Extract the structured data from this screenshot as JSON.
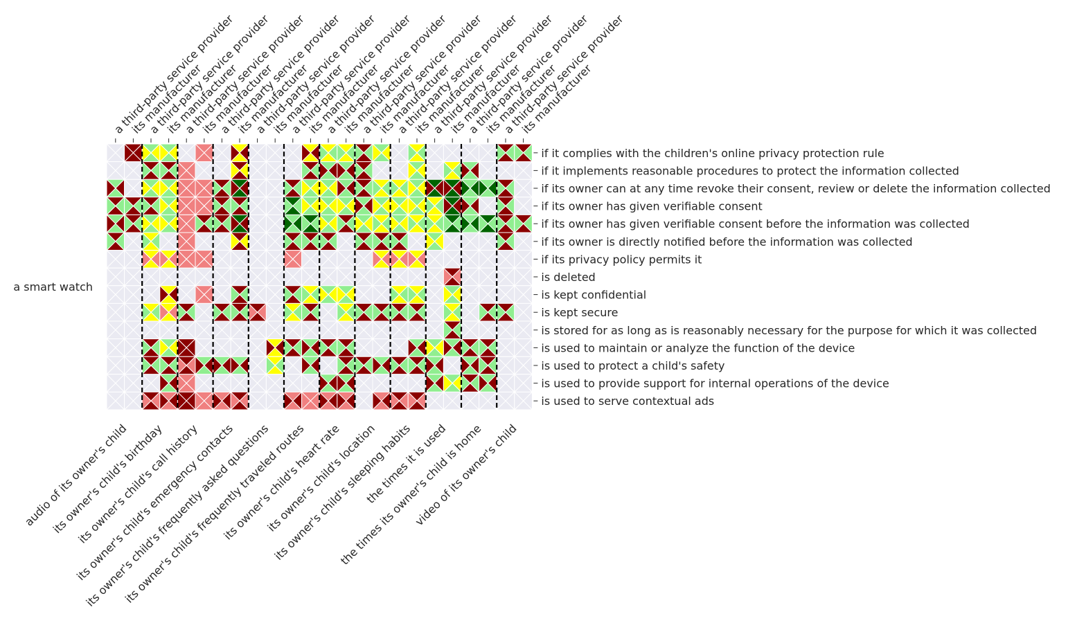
{
  "colors": {
    "background": "#eaeaf2",
    "grid": "#ffffff",
    "dark_red": "#8b0000",
    "light_red": "#f08080",
    "yellow": "#ffff00",
    "light_green": "#90ee90",
    "dark_green": "#006400",
    "separator": "#000000"
  },
  "chart_data": {
    "type": "heatmap",
    "description_cells": "Each cell is split into four triangles (top, right, bottom, left); value is color code per triangle. Codes: 0=none,1=dark_red,2=light_red,3=yellow,4=light_green,5=dark_green",
    "y_group_label": "a smart watch",
    "row_labels": [
      "if it complies with the children's online privacy protection rule",
      "if it implements reasonable procedures to protect the information collected",
      "if its owner can at any time revoke their consent, review or delete the information collected",
      "if its owner has given verifiable consent",
      "if its owner has given verifiable consent before the information was collected",
      "if its owner is directly notified before the information was collected",
      "if its privacy policy permits it",
      "is deleted",
      "is kept confidential",
      "is kept secure",
      "is stored for as long as is reasonably necessary for the purpose for which it was collected",
      "is used to maintain or analyze the function of the device",
      "is used to protect a child's safety",
      "is used to provide support for internal operations of the device",
      "is used to serve contextual ads"
    ],
    "bottom_labels": [
      "audio of its owner's child",
      "its owner's child's birthday",
      "its owner's child's call history",
      "its owner's child's emergency contacts",
      "its owner's child's frequently asked questions",
      "its owner's child's frequently traveled routes",
      "its owner's child's heart rate",
      "its owner's child's location",
      "its owner's child's sleeping habits",
      "the times it is used",
      "the times its owner's child is home",
      "video of its owner's child"
    ],
    "top_labels": [
      "a third-party service provider",
      "its manufacturer",
      "a third-party service provider",
      "its manufacturer",
      "a third-party service provider",
      "its manufacturer",
      "a third-party service provider",
      "its manufacturer",
      "a third-party service provider",
      "its manufacturer",
      "a third-party service provider",
      "its manufacturer",
      "a third-party service provider",
      "its manufacturer",
      "a third-party service provider",
      "its manufacturer",
      "a third-party service provider",
      "its manufacturer",
      "a third-party service provider",
      "its manufacturer",
      "a third-party service provider",
      "its manufacturer",
      "a third-party service provider",
      "its manufacturer"
    ],
    "cells": [
      [
        "0000",
        "1111",
        "4343",
        "4343",
        "0000",
        "2222",
        "0000",
        "3131",
        "0000",
        "0000",
        "0000",
        "3131",
        "3434",
        "3434",
        "1414",
        "4343",
        "0000",
        "3434",
        "0000",
        "0000",
        "0000",
        "0000",
        "1414",
        "1414"
      ],
      [
        "0000",
        "0000",
        "1414",
        "1414",
        "2222",
        "0000",
        "0000",
        "1313",
        "0000",
        "0000",
        "0000",
        "1414",
        "4141",
        "4141",
        "1414",
        "0000",
        "0000",
        "4343",
        "0000",
        "3434",
        "4141",
        "0000",
        "0000",
        "0000"
      ],
      [
        "4141",
        "0000",
        "4343",
        "4343",
        "2222",
        "2222",
        "1414",
        "5151",
        "0000",
        "0000",
        "1414",
        "4343",
        "4343",
        "4141",
        "1414",
        "3434",
        "3434",
        "4343",
        "5151",
        "5151",
        "4545",
        "4545",
        "1414",
        "0000"
      ],
      [
        "1414",
        "1414",
        "1414",
        "4343",
        "2222",
        "2222",
        "1414",
        "1414",
        "0000",
        "0000",
        "5454",
        "4343",
        "4343",
        "4343",
        "4141",
        "4343",
        "4343",
        "4343",
        "3434",
        "5151",
        "4141",
        "0000",
        "1414",
        "0000"
      ],
      [
        "4141",
        "1414",
        "4343",
        "4343",
        "2222",
        "1414",
        "1414",
        "5151",
        "0000",
        "0000",
        "4545",
        "5454",
        "4343",
        "1414",
        "4343",
        "3434",
        "4343",
        "3434",
        "3434",
        "5454",
        "4545",
        "5454",
        "1414",
        "1414"
      ],
      [
        "1414",
        "0000",
        "3434",
        "0000",
        "2222",
        "0000",
        "0000",
        "1313",
        "0000",
        "0000",
        "1414",
        "1414",
        "1414",
        "0000",
        "1414",
        "1414",
        "1414",
        "0000",
        "4343",
        "0000",
        "0000",
        "0000",
        "1414",
        "0000"
      ],
      [
        "0000",
        "0000",
        "3232",
        "3232",
        "2222",
        "2222",
        "0000",
        "0000",
        "0000",
        "0000",
        "2222",
        "0000",
        "0000",
        "0000",
        "0000",
        "3232",
        "3232",
        "3232",
        "0000",
        "0000",
        "0000",
        "0000",
        "0000",
        "0000"
      ],
      [
        "0000",
        "0000",
        "0000",
        "0000",
        "0000",
        "0000",
        "0000",
        "0000",
        "0000",
        "0000",
        "0000",
        "0000",
        "0000",
        "0000",
        "0000",
        "0000",
        "0000",
        "0000",
        "0000",
        "1212",
        "0000",
        "0000",
        "0000",
        "0000"
      ],
      [
        "0000",
        "0000",
        "0000",
        "3131",
        "0000",
        "2222",
        "0000",
        "1414",
        "0000",
        "0000",
        "1414",
        "3434",
        "4343",
        "4343",
        "0000",
        "0000",
        "3434",
        "3434",
        "0000",
        "4343",
        "0000",
        "0000",
        "0000",
        "0000"
      ],
      [
        "0000",
        "0000",
        "3434",
        "3232",
        "1414",
        "0000",
        "1414",
        "1414",
        "1212",
        "0000",
        "3434",
        "1414",
        "0000",
        "3434",
        "1414",
        "1414",
        "1414",
        "1414",
        "0000",
        "3434",
        "0000",
        "1414",
        "1414",
        "0000"
      ],
      [
        "0000",
        "0000",
        "0000",
        "0000",
        "0000",
        "0000",
        "0000",
        "0000",
        "0000",
        "0000",
        "0000",
        "0000",
        "0000",
        "0000",
        "0000",
        "0000",
        "0000",
        "0000",
        "0000",
        "1414",
        "0000",
        "0000",
        "0000",
        "0000"
      ],
      [
        "0000",
        "0000",
        "1414",
        "4343",
        "1111",
        "0000",
        "0000",
        "0000",
        "0000",
        "3131",
        "1414",
        "4141",
        "1414",
        "1414",
        "0000",
        "0000",
        "0000",
        "4141",
        "4343",
        "4141",
        "1414",
        "1414",
        "0000",
        "0000"
      ],
      [
        "0000",
        "0000",
        "1414",
        "1414",
        "1212",
        "4141",
        "4141",
        "4141",
        "0000",
        "3434",
        "0000",
        "4141",
        "0000",
        "1414",
        "1414",
        "4141",
        "1414",
        "1414",
        "4141",
        "0000",
        "4141",
        "1414",
        "0000",
        "0000"
      ],
      [
        "0000",
        "0000",
        "0000",
        "4141",
        "2222",
        "0000",
        "0000",
        "0000",
        "0000",
        "0000",
        "0000",
        "0000",
        "4141",
        "4141",
        "0000",
        "0000",
        "0000",
        "0000",
        "4141",
        "4343",
        "1414",
        "4141",
        "0000",
        "0000"
      ],
      [
        "0000",
        "0000",
        "1212",
        "2121",
        "1111",
        "2222",
        "2121",
        "1212",
        "0000",
        "0000",
        "2121",
        "2222",
        "2121",
        "2121",
        "0000",
        "2121",
        "1212",
        "1212",
        "0000",
        "0000",
        "0000",
        "0000",
        "0000",
        "0000"
      ]
    ],
    "group_separators_after_column": [
      2,
      4,
      6,
      8,
      10,
      12,
      14,
      16,
      18,
      20,
      22
    ]
  }
}
